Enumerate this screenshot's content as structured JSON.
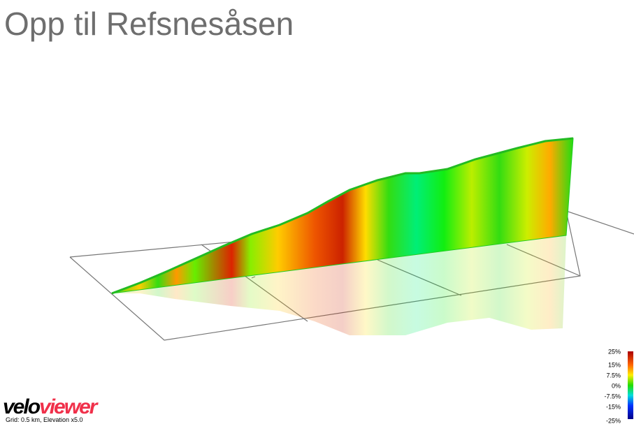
{
  "title": "Opp til Refsnesåsen",
  "legend": {
    "labels": [
      "25%",
      "15%",
      "7.5%",
      "0%",
      "-7.5%",
      "-15%",
      "-25%"
    ]
  },
  "logo": {
    "velo": "velo",
    "viewer": "viewer"
  },
  "caption": "Grid: 0.5 km, Elevation x5.0"
}
